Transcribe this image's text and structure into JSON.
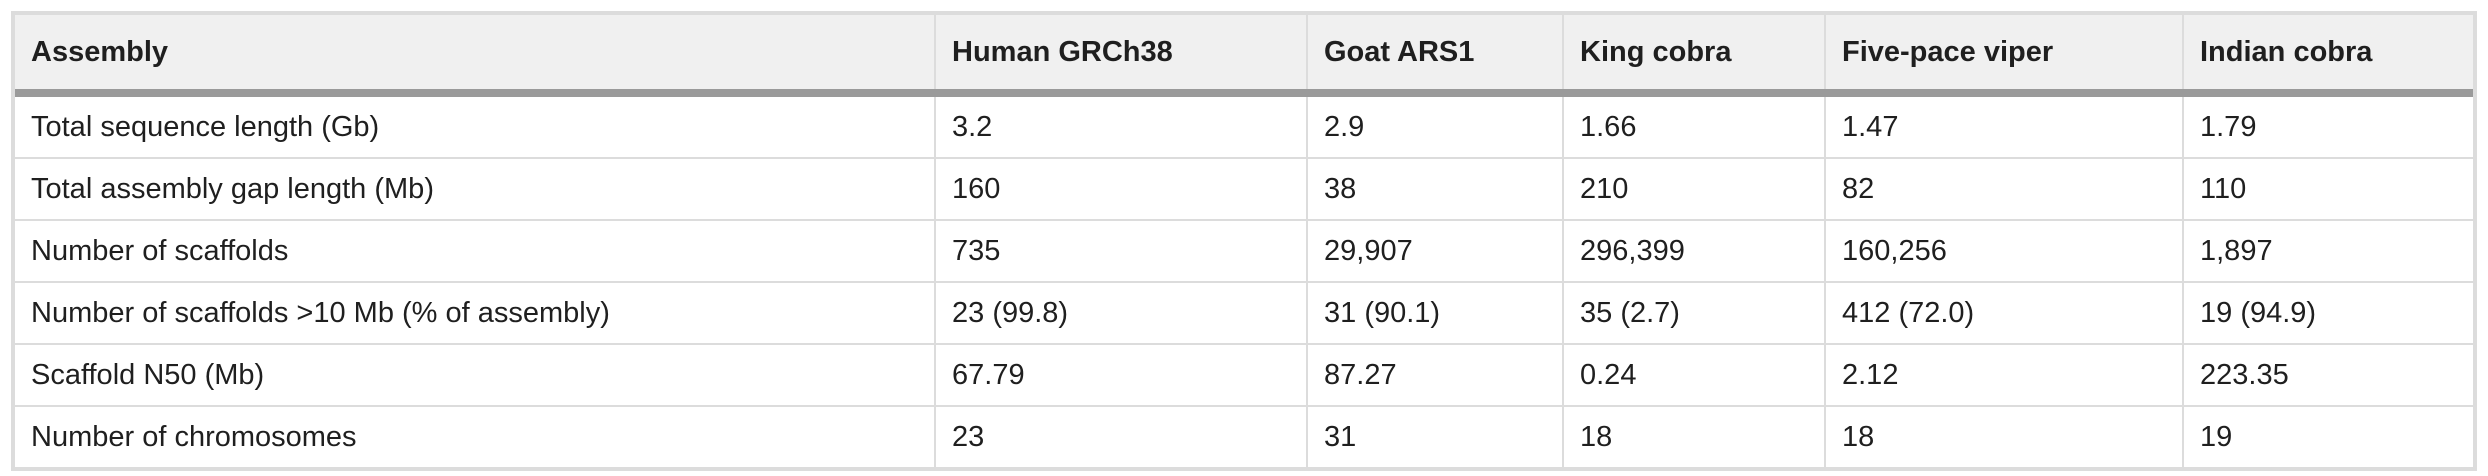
{
  "table": {
    "header": [
      "Assembly",
      "Human GRCh38",
      "Goat ARS1",
      "King cobra",
      "Five-pace viper",
      "Indian cobra"
    ],
    "rows": [
      [
        "Total sequence length (Gb)",
        "3.2",
        "2.9",
        "1.66",
        "1.47",
        "1.79"
      ],
      [
        "Total assembly gap length (Mb)",
        "160",
        "38",
        "210",
        "82",
        "110"
      ],
      [
        "Number of scaffolds",
        "735",
        "29,907",
        "296,399",
        "160,256",
        "1,897"
      ],
      [
        "Number of scaffolds >10 Mb (% of assembly)",
        "23 (99.8)",
        "31 (90.1)",
        "35 (2.7)",
        "412 (72.0)",
        "19 (94.9)"
      ],
      [
        "Scaffold N50 (Mb)",
        "67.79",
        "87.27",
        "0.24",
        "2.12",
        "223.35"
      ],
      [
        "Number of chromosomes",
        "23",
        "31",
        "18",
        "18",
        "19"
      ]
    ]
  }
}
